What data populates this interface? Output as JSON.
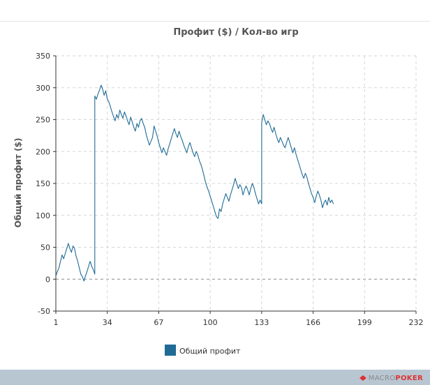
{
  "chart_data": {
    "type": "line",
    "title": "Профит ($) / Кол-во игр",
    "ylabel": "Общий профит ($)",
    "xlabel": "",
    "xlim": [
      1,
      232
    ],
    "ylim": [
      -50,
      350
    ],
    "x_ticks": [
      "1",
      "34",
      "67",
      "100",
      "133",
      "166",
      "199",
      "232"
    ],
    "y_ticks": [
      "-50",
      "0",
      "50",
      "100",
      "150",
      "200",
      "250",
      "300",
      "350"
    ],
    "grid": true,
    "legend_position": "bottom-left",
    "series": [
      {
        "name": "Общий профит",
        "color": "#1f6b96",
        "points": [
          [
            1,
            5
          ],
          [
            2,
            12
          ],
          [
            3,
            18
          ],
          [
            4,
            28
          ],
          [
            5,
            38
          ],
          [
            6,
            32
          ],
          [
            7,
            40
          ],
          [
            8,
            48
          ],
          [
            9,
            56
          ],
          [
            10,
            48
          ],
          [
            11,
            42
          ],
          [
            12,
            52
          ],
          [
            13,
            48
          ],
          [
            14,
            36
          ],
          [
            15,
            28
          ],
          [
            16,
            18
          ],
          [
            17,
            8
          ],
          [
            18,
            4
          ],
          [
            19,
            -3
          ],
          [
            20,
            5
          ],
          [
            21,
            12
          ],
          [
            22,
            20
          ],
          [
            23,
            28
          ],
          [
            24,
            20
          ],
          [
            25,
            15
          ],
          [
            26,
            8
          ],
          [
            26,
            287
          ],
          [
            27,
            282
          ],
          [
            28,
            290
          ],
          [
            29,
            296
          ],
          [
            30,
            304
          ],
          [
            31,
            298
          ],
          [
            32,
            288
          ],
          [
            33,
            295
          ],
          [
            34,
            282
          ],
          [
            35,
            278
          ],
          [
            36,
            270
          ],
          [
            37,
            262
          ],
          [
            38,
            255
          ],
          [
            39,
            248
          ],
          [
            40,
            258
          ],
          [
            41,
            252
          ],
          [
            42,
            265
          ],
          [
            43,
            258
          ],
          [
            44,
            252
          ],
          [
            45,
            262
          ],
          [
            46,
            256
          ],
          [
            47,
            248
          ],
          [
            48,
            242
          ],
          [
            49,
            254
          ],
          [
            50,
            246
          ],
          [
            51,
            238
          ],
          [
            52,
            232
          ],
          [
            53,
            244
          ],
          [
            54,
            238
          ],
          [
            55,
            248
          ],
          [
            56,
            252
          ],
          [
            57,
            244
          ],
          [
            58,
            238
          ],
          [
            59,
            226
          ],
          [
            60,
            218
          ],
          [
            61,
            210
          ],
          [
            62,
            216
          ],
          [
            63,
            222
          ],
          [
            64,
            240
          ],
          [
            65,
            232
          ],
          [
            66,
            224
          ],
          [
            67,
            214
          ],
          [
            68,
            206
          ],
          [
            69,
            198
          ],
          [
            70,
            206
          ],
          [
            71,
            200
          ],
          [
            72,
            194
          ],
          [
            73,
            204
          ],
          [
            74,
            212
          ],
          [
            75,
            220
          ],
          [
            76,
            228
          ],
          [
            77,
            236
          ],
          [
            78,
            228
          ],
          [
            79,
            222
          ],
          [
            80,
            232
          ],
          [
            81,
            224
          ],
          [
            82,
            218
          ],
          [
            83,
            210
          ],
          [
            84,
            204
          ],
          [
            85,
            198
          ],
          [
            86,
            208
          ],
          [
            87,
            214
          ],
          [
            88,
            206
          ],
          [
            89,
            198
          ],
          [
            90,
            192
          ],
          [
            91,
            200
          ],
          [
            92,
            195
          ],
          [
            93,
            186
          ],
          [
            94,
            180
          ],
          [
            95,
            172
          ],
          [
            96,
            162
          ],
          [
            97,
            152
          ],
          [
            98,
            144
          ],
          [
            99,
            138
          ],
          [
            100,
            130
          ],
          [
            101,
            122
          ],
          [
            102,
            114
          ],
          [
            103,
            106
          ],
          [
            104,
            98
          ],
          [
            105,
            95
          ],
          [
            106,
            110
          ],
          [
            107,
            106
          ],
          [
            108,
            118
          ],
          [
            109,
            126
          ],
          [
            110,
            134
          ],
          [
            111,
            128
          ],
          [
            112,
            122
          ],
          [
            113,
            132
          ],
          [
            114,
            140
          ],
          [
            115,
            148
          ],
          [
            116,
            158
          ],
          [
            117,
            150
          ],
          [
            118,
            142
          ],
          [
            119,
            148
          ],
          [
            120,
            144
          ],
          [
            121,
            132
          ],
          [
            122,
            140
          ],
          [
            123,
            146
          ],
          [
            124,
            140
          ],
          [
            125,
            132
          ],
          [
            126,
            142
          ],
          [
            127,
            150
          ],
          [
            128,
            144
          ],
          [
            129,
            134
          ],
          [
            130,
            126
          ],
          [
            131,
            118
          ],
          [
            132,
            124
          ],
          [
            133,
            118
          ],
          [
            133,
            246
          ],
          [
            134,
            258
          ],
          [
            135,
            250
          ],
          [
            136,
            242
          ],
          [
            137,
            248
          ],
          [
            138,
            244
          ],
          [
            139,
            236
          ],
          [
            140,
            230
          ],
          [
            141,
            238
          ],
          [
            142,
            228
          ],
          [
            143,
            220
          ],
          [
            144,
            214
          ],
          [
            145,
            222
          ],
          [
            146,
            216
          ],
          [
            147,
            210
          ],
          [
            148,
            206
          ],
          [
            149,
            214
          ],
          [
            150,
            222
          ],
          [
            151,
            214
          ],
          [
            152,
            206
          ],
          [
            153,
            198
          ],
          [
            154,
            206
          ],
          [
            155,
            196
          ],
          [
            156,
            188
          ],
          [
            157,
            180
          ],
          [
            158,
            172
          ],
          [
            159,
            164
          ],
          [
            160,
            158
          ],
          [
            161,
            166
          ],
          [
            162,
            160
          ],
          [
            163,
            150
          ],
          [
            164,
            142
          ],
          [
            165,
            134
          ],
          [
            166,
            128
          ],
          [
            167,
            120
          ],
          [
            168,
            130
          ],
          [
            169,
            138
          ],
          [
            170,
            132
          ],
          [
            171,
            124
          ],
          [
            172,
            112
          ],
          [
            173,
            120
          ],
          [
            174,
            124
          ],
          [
            175,
            116
          ],
          [
            176,
            128
          ],
          [
            177,
            120
          ],
          [
            178,
            124
          ],
          [
            179,
            118
          ]
        ]
      }
    ]
  },
  "legend": {
    "label": "Общий профит",
    "swatch_color": "#1f6b96"
  },
  "footer": {
    "brand_macro": "MACRO",
    "brand_poker": "POKER"
  }
}
